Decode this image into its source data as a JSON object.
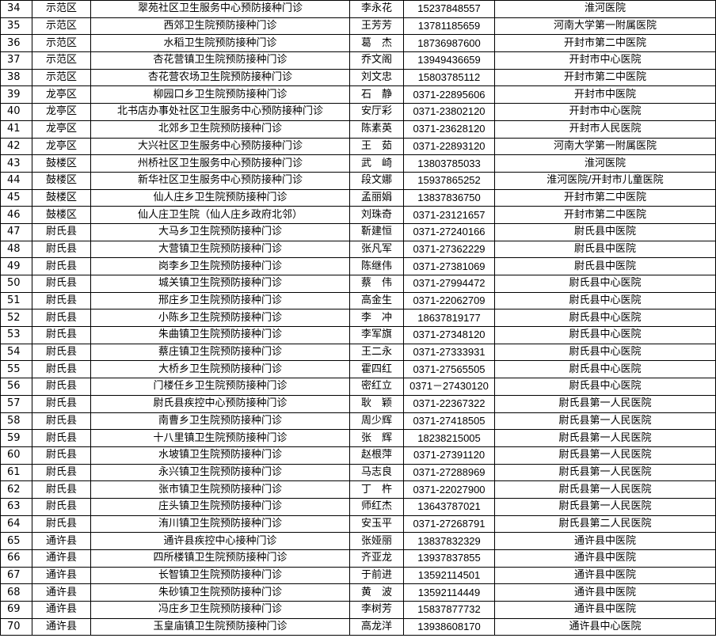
{
  "table": {
    "rows": [
      [
        "34",
        "示范区",
        "翠苑社区卫生服务中心预防接种门诊",
        "李永花",
        "15237848557",
        "淮河医院"
      ],
      [
        "35",
        "示范区",
        "西郊卫生院预防接种门诊",
        "王芳芳",
        "13781185659",
        "河南大学第一附属医院"
      ],
      [
        "36",
        "示范区",
        "水稻卫生院预防接种门诊",
        "葛　杰",
        "18736987600",
        "开封市第二中医院"
      ],
      [
        "37",
        "示范区",
        "杏花营镇卫生院预防接种门诊",
        "乔文阁",
        "13949436659",
        "开封市中心医院"
      ],
      [
        "38",
        "示范区",
        "杏花营农场卫生院预防接种门诊",
        "刘文忠",
        "15803785112",
        "开封市第二中医院"
      ],
      [
        "39",
        "龙亭区",
        "柳园口乡卫生院预防接种门诊",
        "石　静",
        "0371-22895606",
        "开封市中医院"
      ],
      [
        "40",
        "龙亭区",
        "北书店办事处社区卫生服务中心预防接种门诊",
        "安厅彩",
        "0371-23802120",
        "开封市中心医院"
      ],
      [
        "41",
        "龙亭区",
        "北郊乡卫生院预防接种门诊",
        "陈素英",
        "0371-23628120",
        "开封市人民医院"
      ],
      [
        "42",
        "龙亭区",
        "大兴社区卫生服务中心预防接种门诊",
        "王　茹",
        "0371-22893120",
        "河南大学第一附属医院"
      ],
      [
        "43",
        "鼓楼区",
        "州桥社区卫生服务中心预防接种门诊",
        "武　崎",
        "13803785033",
        "淮河医院"
      ],
      [
        "44",
        "鼓楼区",
        "新华社区卫生服务中心预防接种门诊",
        "段文娜",
        "15937865252",
        "淮河医院/开封市儿童医院"
      ],
      [
        "45",
        "鼓楼区",
        "仙人庄乡卫生院预防接种门诊",
        "孟丽娟",
        "13837836750",
        "开封市第二中医院"
      ],
      [
        "46",
        "鼓楼区",
        "仙人庄卫生院（仙人庄乡政府北邻）",
        "刘珠奇",
        "0371-23121657",
        "开封市第二中医院"
      ],
      [
        "47",
        "尉氏县",
        "大马乡卫生院预防接种门诊",
        "靳建恒",
        "0371-27240166",
        "尉氏县中医院"
      ],
      [
        "48",
        "尉氏县",
        "大营镇卫生院预防接种门诊",
        "张凡军",
        "0371-27362229",
        "尉氏县中医院"
      ],
      [
        "49",
        "尉氏县",
        "岗李乡卫生院预防接种门诊",
        "陈继伟",
        "0371-27381069",
        "尉氏县中医院"
      ],
      [
        "50",
        "尉氏县",
        "城关镇卫生院预防接种门诊",
        "蔡　伟",
        "0371-27994472",
        "尉氏县中心医院"
      ],
      [
        "51",
        "尉氏县",
        "邢庄乡卫生院预防接种门诊",
        "高金生",
        "0371-22062709",
        "尉氏县中心医院"
      ],
      [
        "52",
        "尉氏县",
        "小陈乡卫生院预防接种门诊",
        "李　冲",
        "18637819177",
        "尉氏县中心医院"
      ],
      [
        "53",
        "尉氏县",
        "朱曲镇卫生院预防接种门诊",
        "李军旗",
        "0371-27348120",
        "尉氏县中心医院"
      ],
      [
        "54",
        "尉氏县",
        "蔡庄镇卫生院预防接种门诊",
        "王二永",
        "0371-27333931",
        "尉氏县中心医院"
      ],
      [
        "55",
        "尉氏县",
        "大桥乡卫生院预防接种门诊",
        "霍四红",
        "0371-27565505",
        "尉氏县中心医院"
      ],
      [
        "56",
        "尉氏县",
        "门楼任乡卫生院预防接种门诊",
        "密红立",
        "0371－27430120",
        "尉氏县中心医院"
      ],
      [
        "57",
        "尉氏县",
        "尉氏县疾控中心预防接种门诊",
        "耿　颖",
        "0371-22367322",
        "尉氏县第一人民医院"
      ],
      [
        "58",
        "尉氏县",
        "南曹乡卫生院预防接种门诊",
        "周少辉",
        "0371-27418505",
        "尉氏县第一人民医院"
      ],
      [
        "59",
        "尉氏县",
        "十八里镇卫生院预防接种门诊",
        "张　辉",
        "18238215005",
        "尉氏县第一人民医院"
      ],
      [
        "60",
        "尉氏县",
        "水坡镇卫生院预防接种门诊",
        "赵根萍",
        "0371-27391120",
        "尉氏县第一人民医院"
      ],
      [
        "61",
        "尉氏县",
        "永兴镇卫生院预防接种门诊",
        "马志良",
        "0371-27288969",
        "尉氏县第一人民医院"
      ],
      [
        "62",
        "尉氏县",
        "张市镇卫生院预防接种门诊",
        "丁　杵",
        "0371-22027900",
        "尉氏县第一人民医院"
      ],
      [
        "63",
        "尉氏县",
        "庄头镇卫生院预防接种门诊",
        "师红杰",
        "13643787021",
        "尉氏县第一人民医院"
      ],
      [
        "64",
        "尉氏县",
        "洧川镇卫生院预防接种门诊",
        "安玉平",
        "0371-27268791",
        "尉氏县第二人民医院"
      ],
      [
        "65",
        "通许县",
        "通许县疾控中心接种门诊",
        "张娅丽",
        "13837832329",
        "通许县中医院"
      ],
      [
        "66",
        "通许县",
        "四所楼镇卫生院预防接种门诊",
        "齐亚龙",
        "13937837855",
        "通许县中医院"
      ],
      [
        "67",
        "通许县",
        "长智镇卫生院预防接种门诊",
        "于前进",
        "13592114501",
        "通许县中医院"
      ],
      [
        "68",
        "通许县",
        "朱砂镇卫生院预防接种门诊",
        "黄　波",
        "13592114449",
        "通许县中医院"
      ],
      [
        "69",
        "通许县",
        "冯庄乡卫生院预防接种门诊",
        "李树芳",
        "15837877732",
        "通许县中医院"
      ],
      [
        "70",
        "通许县",
        "玉皇庙镇卫生院预防接种门诊",
        "高龙洋",
        "13938608170",
        "通许县中心医院"
      ]
    ]
  }
}
